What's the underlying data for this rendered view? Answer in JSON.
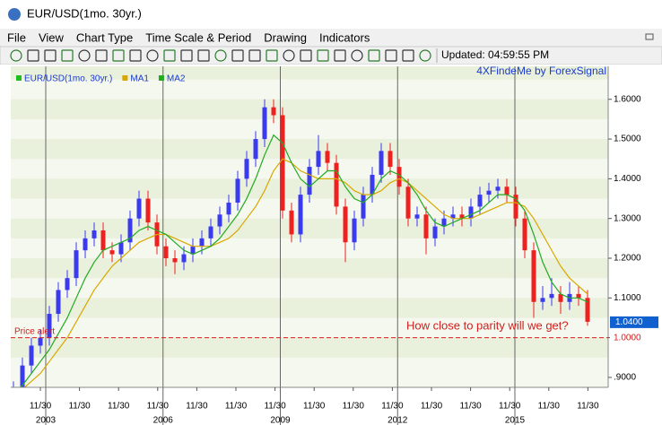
{
  "window": {
    "title": "EUR/USD(1mo.  30yr.)"
  },
  "menu": [
    "File",
    "View",
    "Chart Type",
    "Time Scale & Period",
    "Drawing",
    "Indicators"
  ],
  "toolbar": {
    "status": "Updated: 04:59:55 PM"
  },
  "chart_data": {
    "type": "candlestick",
    "brand": "4XFindeMe by ForexSignal",
    "candles": {
      "name": "EUR/USD(1mo.  30yr.)",
      "legend_color": "#22bb22",
      "up_color": "#3a3aee",
      "down_color": "#ee2020",
      "ohlc": [
        [
          0.85,
          0.89,
          0.83,
          0.87
        ],
        [
          0.87,
          0.95,
          0.85,
          0.93
        ],
        [
          0.93,
          1.0,
          0.91,
          0.98
        ],
        [
          0.98,
          1.02,
          0.96,
          1.0
        ],
        [
          1.0,
          1.08,
          0.98,
          1.06
        ],
        [
          1.06,
          1.14,
          1.04,
          1.12
        ],
        [
          1.12,
          1.17,
          1.1,
          1.15
        ],
        [
          1.15,
          1.24,
          1.13,
          1.22
        ],
        [
          1.22,
          1.27,
          1.2,
          1.25
        ],
        [
          1.25,
          1.29,
          1.23,
          1.27
        ],
        [
          1.27,
          1.29,
          1.2,
          1.22
        ],
        [
          1.22,
          1.24,
          1.19,
          1.21
        ],
        [
          1.21,
          1.26,
          1.19,
          1.24
        ],
        [
          1.24,
          1.32,
          1.22,
          1.3
        ],
        [
          1.3,
          1.37,
          1.28,
          1.35
        ],
        [
          1.35,
          1.37,
          1.27,
          1.29
        ],
        [
          1.29,
          1.31,
          1.21,
          1.23
        ],
        [
          1.23,
          1.25,
          1.18,
          1.2
        ],
        [
          1.2,
          1.22,
          1.16,
          1.19
        ],
        [
          1.19,
          1.23,
          1.17,
          1.21
        ],
        [
          1.21,
          1.25,
          1.19,
          1.23
        ],
        [
          1.23,
          1.27,
          1.21,
          1.25
        ],
        [
          1.25,
          1.3,
          1.23,
          1.28
        ],
        [
          1.28,
          1.33,
          1.26,
          1.31
        ],
        [
          1.31,
          1.36,
          1.29,
          1.34
        ],
        [
          1.34,
          1.42,
          1.32,
          1.4
        ],
        [
          1.4,
          1.47,
          1.38,
          1.45
        ],
        [
          1.45,
          1.52,
          1.43,
          1.5
        ],
        [
          1.5,
          1.6,
          1.48,
          1.58
        ],
        [
          1.58,
          1.6,
          1.54,
          1.56
        ],
        [
          1.56,
          1.58,
          1.3,
          1.32
        ],
        [
          1.32,
          1.34,
          1.24,
          1.26
        ],
        [
          1.26,
          1.38,
          1.24,
          1.36
        ],
        [
          1.36,
          1.45,
          1.34,
          1.43
        ],
        [
          1.43,
          1.51,
          1.41,
          1.47
        ],
        [
          1.47,
          1.49,
          1.42,
          1.44
        ],
        [
          1.44,
          1.46,
          1.31,
          1.33
        ],
        [
          1.33,
          1.35,
          1.19,
          1.24
        ],
        [
          1.24,
          1.32,
          1.22,
          1.3
        ],
        [
          1.3,
          1.38,
          1.28,
          1.36
        ],
        [
          1.36,
          1.43,
          1.34,
          1.41
        ],
        [
          1.41,
          1.49,
          1.39,
          1.47
        ],
        [
          1.47,
          1.49,
          1.41,
          1.43
        ],
        [
          1.43,
          1.45,
          1.36,
          1.38
        ],
        [
          1.38,
          1.4,
          1.28,
          1.3
        ],
        [
          1.3,
          1.33,
          1.28,
          1.31
        ],
        [
          1.31,
          1.33,
          1.21,
          1.25
        ],
        [
          1.25,
          1.3,
          1.23,
          1.28
        ],
        [
          1.28,
          1.32,
          1.26,
          1.3
        ],
        [
          1.3,
          1.33,
          1.28,
          1.31
        ],
        [
          1.31,
          1.33,
          1.28,
          1.3
        ],
        [
          1.3,
          1.35,
          1.28,
          1.33
        ],
        [
          1.33,
          1.38,
          1.31,
          1.36
        ],
        [
          1.36,
          1.39,
          1.34,
          1.37
        ],
        [
          1.37,
          1.4,
          1.35,
          1.38
        ],
        [
          1.38,
          1.4,
          1.34,
          1.36
        ],
        [
          1.36,
          1.38,
          1.28,
          1.3
        ],
        [
          1.3,
          1.32,
          1.2,
          1.22
        ],
        [
          1.22,
          1.24,
          1.05,
          1.09
        ],
        [
          1.09,
          1.13,
          1.07,
          1.1
        ],
        [
          1.1,
          1.15,
          1.08,
          1.11
        ],
        [
          1.11,
          1.13,
          1.06,
          1.09
        ],
        [
          1.09,
          1.14,
          1.07,
          1.11
        ],
        [
          1.11,
          1.13,
          1.08,
          1.1
        ],
        [
          1.1,
          1.12,
          1.03,
          1.04
        ]
      ]
    },
    "series": [
      {
        "name": "MA1",
        "color": "#d8a800",
        "values": [
          0.85,
          0.87,
          0.89,
          0.91,
          0.94,
          0.97,
          1.0,
          1.04,
          1.08,
          1.12,
          1.15,
          1.18,
          1.2,
          1.22,
          1.24,
          1.25,
          1.26,
          1.26,
          1.25,
          1.24,
          1.23,
          1.23,
          1.23,
          1.24,
          1.25,
          1.27,
          1.3,
          1.33,
          1.37,
          1.42,
          1.45,
          1.44,
          1.42,
          1.41,
          1.4,
          1.4,
          1.4,
          1.39,
          1.37,
          1.36,
          1.36,
          1.37,
          1.39,
          1.4,
          1.39,
          1.37,
          1.35,
          1.33,
          1.31,
          1.3,
          1.3,
          1.3,
          1.31,
          1.32,
          1.33,
          1.34,
          1.34,
          1.33,
          1.3,
          1.26,
          1.22,
          1.18,
          1.15,
          1.13,
          1.11
        ]
      },
      {
        "name": "MA2",
        "color": "#22aa22",
        "values": [
          0.86,
          0.88,
          0.91,
          0.94,
          0.97,
          1.01,
          1.05,
          1.1,
          1.15,
          1.19,
          1.22,
          1.23,
          1.24,
          1.25,
          1.27,
          1.28,
          1.27,
          1.26,
          1.24,
          1.22,
          1.21,
          1.22,
          1.23,
          1.25,
          1.28,
          1.31,
          1.35,
          1.4,
          1.46,
          1.51,
          1.49,
          1.44,
          1.4,
          1.38,
          1.4,
          1.42,
          1.42,
          1.38,
          1.35,
          1.34,
          1.36,
          1.4,
          1.42,
          1.41,
          1.39,
          1.36,
          1.32,
          1.29,
          1.28,
          1.29,
          1.3,
          1.31,
          1.32,
          1.34,
          1.36,
          1.36,
          1.35,
          1.32,
          1.26,
          1.19,
          1.14,
          1.11,
          1.1,
          1.1,
          1.09
        ]
      }
    ],
    "ylim": [
      0.875,
      1.683
    ],
    "yticks": [
      {
        "value": 0.9,
        "label": ".9000"
      },
      {
        "value": 1.0,
        "label": "1.0000"
      },
      {
        "value": 1.1,
        "label": "1.1000"
      },
      {
        "value": 1.2,
        "label": "1.2000"
      },
      {
        "value": 1.3,
        "label": "1.3000"
      },
      {
        "value": 1.4,
        "label": "1.4000"
      },
      {
        "value": 1.5,
        "label": "1.5000"
      },
      {
        "value": 1.6,
        "label": "1.6000"
      }
    ],
    "last_price": {
      "value": 1.04,
      "label": "1.0400",
      "color": "#1060d0"
    },
    "alert": {
      "name": "Price alert",
      "value": 1.0,
      "label": "1.0000",
      "color": "#d02020"
    },
    "annotation": "How close to parity will we get?",
    "x_labels": [
      "11/30",
      "11/30",
      "11/30",
      "11/30",
      "11/30",
      "11/30",
      "11/30",
      "11/30",
      "11/30",
      "11/30",
      "11/30",
      "11/30",
      "11/30",
      "11/30",
      "11/30"
    ],
    "years": [
      "2003",
      "2006",
      "2009",
      "2012",
      "2015"
    ]
  }
}
